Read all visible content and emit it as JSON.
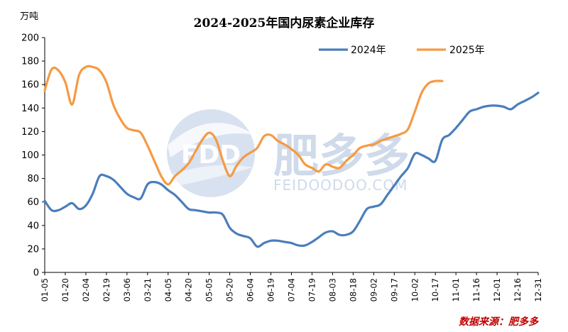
{
  "chart_data": {
    "type": "line",
    "title": "2024-2025年国内尿素企业库存",
    "unit_label": "万吨",
    "ylim": [
      0,
      200
    ],
    "yticks": [
      0,
      20,
      40,
      60,
      80,
      100,
      120,
      140,
      160,
      180,
      200
    ],
    "x_dates": [
      "01-05",
      "01-20",
      "02-04",
      "02-19",
      "03-06",
      "03-21",
      "04-05",
      "04-20",
      "05-05",
      "05-20",
      "06-04",
      "06-19",
      "07-04",
      "07-19",
      "08-03",
      "08-18",
      "09-02",
      "09-17",
      "10-02",
      "10-17",
      "11-01",
      "11-16",
      "12-01",
      "12-16",
      "12-31"
    ],
    "x_day_range": [
      5,
      365
    ],
    "grid": false,
    "legend_position": "top-right",
    "series": [
      {
        "name": "2024年",
        "color": "#4a7ebb",
        "points": [
          [
            "01-05",
            61
          ],
          [
            "01-10",
            53
          ],
          [
            "01-15",
            53
          ],
          [
            "01-20",
            56
          ],
          [
            "01-25",
            59
          ],
          [
            "01-30",
            54
          ],
          [
            "02-04",
            57
          ],
          [
            "02-09",
            67
          ],
          [
            "02-14",
            82
          ],
          [
            "02-19",
            82
          ],
          [
            "02-24",
            79
          ],
          [
            "03-01",
            73
          ],
          [
            "03-06",
            67
          ],
          [
            "03-11",
            64
          ],
          [
            "03-16",
            63
          ],
          [
            "03-21",
            75
          ],
          [
            "03-26",
            77
          ],
          [
            "03-31",
            75
          ],
          [
            "04-05",
            70
          ],
          [
            "04-10",
            66
          ],
          [
            "04-15",
            60
          ],
          [
            "04-20",
            54
          ],
          [
            "04-25",
            53
          ],
          [
            "04-30",
            52
          ],
          [
            "05-05",
            51
          ],
          [
            "05-10",
            51
          ],
          [
            "05-15",
            49
          ],
          [
            "05-20",
            38
          ],
          [
            "05-25",
            33
          ],
          [
            "05-30",
            31
          ],
          [
            "06-04",
            29
          ],
          [
            "06-09",
            22
          ],
          [
            "06-14",
            25
          ],
          [
            "06-19",
            27
          ],
          [
            "06-24",
            27
          ],
          [
            "06-29",
            26
          ],
          [
            "07-04",
            25
          ],
          [
            "07-09",
            23
          ],
          [
            "07-14",
            23
          ],
          [
            "07-19",
            26
          ],
          [
            "07-24",
            30
          ],
          [
            "07-29",
            34
          ],
          [
            "08-03",
            35
          ],
          [
            "08-08",
            32
          ],
          [
            "08-13",
            32
          ],
          [
            "08-18",
            35
          ],
          [
            "08-23",
            44
          ],
          [
            "08-28",
            54
          ],
          [
            "09-02",
            56
          ],
          [
            "09-07",
            58
          ],
          [
            "09-12",
            66
          ],
          [
            "09-17",
            74
          ],
          [
            "09-22",
            82
          ],
          [
            "09-27",
            89
          ],
          [
            "10-02",
            101
          ],
          [
            "10-07",
            100
          ],
          [
            "10-12",
            97
          ],
          [
            "10-17",
            95
          ],
          [
            "10-22",
            113
          ],
          [
            "10-27",
            117
          ],
          [
            "11-01",
            123
          ],
          [
            "11-06",
            130
          ],
          [
            "11-11",
            137
          ],
          [
            "11-16",
            139
          ],
          [
            "11-21",
            141
          ],
          [
            "11-26",
            142
          ],
          [
            "12-01",
            142
          ],
          [
            "12-06",
            141
          ],
          [
            "12-11",
            139
          ],
          [
            "12-16",
            143
          ],
          [
            "12-21",
            146
          ],
          [
            "12-26",
            149
          ],
          [
            "12-31",
            153
          ]
        ]
      },
      {
        "name": "2025年",
        "color": "#f59a44",
        "points": [
          [
            "01-05",
            155
          ],
          [
            "01-10",
            173
          ],
          [
            "01-15",
            172
          ],
          [
            "01-20",
            162
          ],
          [
            "01-25",
            143
          ],
          [
            "01-30",
            168
          ],
          [
            "02-04",
            175
          ],
          [
            "02-09",
            175
          ],
          [
            "02-14",
            172
          ],
          [
            "02-19",
            162
          ],
          [
            "02-24",
            143
          ],
          [
            "03-01",
            131
          ],
          [
            "03-06",
            123
          ],
          [
            "03-11",
            121
          ],
          [
            "03-16",
            119
          ],
          [
            "03-21",
            108
          ],
          [
            "03-26",
            95
          ],
          [
            "03-31",
            82
          ],
          [
            "04-05",
            75
          ],
          [
            "04-10",
            82
          ],
          [
            "04-15",
            87
          ],
          [
            "04-20",
            93
          ],
          [
            "04-25",
            103
          ],
          [
            "04-30",
            113
          ],
          [
            "05-05",
            119
          ],
          [
            "05-10",
            113
          ],
          [
            "05-15",
            95
          ],
          [
            "05-20",
            82
          ],
          [
            "05-25",
            91
          ],
          [
            "05-30",
            98
          ],
          [
            "06-04",
            102
          ],
          [
            "06-09",
            106
          ],
          [
            "06-14",
            116
          ],
          [
            "06-19",
            117
          ],
          [
            "06-24",
            112
          ],
          [
            "06-29",
            109
          ],
          [
            "07-04",
            105
          ],
          [
            "07-09",
            100
          ],
          [
            "07-14",
            92
          ],
          [
            "07-19",
            89
          ],
          [
            "07-24",
            86
          ],
          [
            "07-29",
            92
          ],
          [
            "08-03",
            90
          ],
          [
            "08-08",
            89
          ],
          [
            "08-13",
            95
          ],
          [
            "08-18",
            100
          ],
          [
            "08-23",
            106
          ],
          [
            "08-28",
            108
          ],
          [
            "09-02",
            109
          ],
          [
            "09-07",
            112
          ],
          [
            "09-12",
            114
          ],
          [
            "09-17",
            116
          ],
          [
            "09-22",
            118
          ],
          [
            "09-27",
            122
          ],
          [
            "10-02",
            137
          ],
          [
            "10-07",
            153
          ],
          [
            "10-12",
            161
          ],
          [
            "10-17",
            163
          ],
          [
            "10-22",
            163
          ]
        ]
      }
    ]
  },
  "watermark": {
    "logo_text": "FDD",
    "brand_cn": "肥多多",
    "url": "FEIDOODOO.COM"
  },
  "source_text": "数据来源：肥多多"
}
